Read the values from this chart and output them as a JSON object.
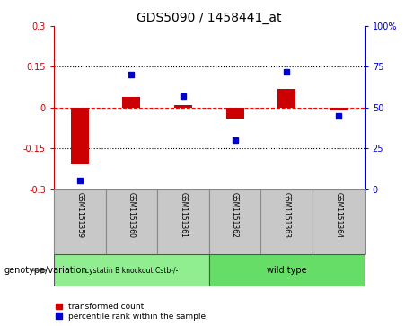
{
  "title": "GDS5090 / 1458441_at",
  "samples": [
    "GSM1151359",
    "GSM1151360",
    "GSM1151361",
    "GSM1151362",
    "GSM1151363",
    "GSM1151364"
  ],
  "red_values": [
    -0.21,
    0.04,
    0.01,
    -0.04,
    0.07,
    -0.01
  ],
  "blue_values_pct": [
    5,
    70,
    57,
    30,
    72,
    45
  ],
  "ylim_left": [
    -0.3,
    0.3
  ],
  "ylim_right": [
    0,
    100
  ],
  "yticks_left": [
    -0.3,
    -0.15,
    0,
    0.15,
    0.3
  ],
  "yticks_right": [
    0,
    25,
    50,
    75,
    100
  ],
  "ytick_labels_left": [
    "-0.3",
    "-0.15",
    "0",
    "0.15",
    "0.3"
  ],
  "ytick_labels_right": [
    "0",
    "25",
    "50",
    "75",
    "100%"
  ],
  "group1_label": "cystatin B knockout Cstb-/-",
  "group2_label": "wild type",
  "group1_indices": [
    0,
    1,
    2
  ],
  "group2_indices": [
    3,
    4,
    5
  ],
  "group1_color": "#90EE90",
  "group2_color": "#66DD66",
  "red_color": "#CC0000",
  "blue_color": "#0000CC",
  "legend_label_red": "transformed count",
  "legend_label_blue": "percentile rank within the sample",
  "genotype_label": "genotype/variation",
  "bar_width": 0.35,
  "bg_color": "#FFFFFF",
  "plot_bg": "#FFFFFF",
  "sample_box_color": "#C8C8C8"
}
